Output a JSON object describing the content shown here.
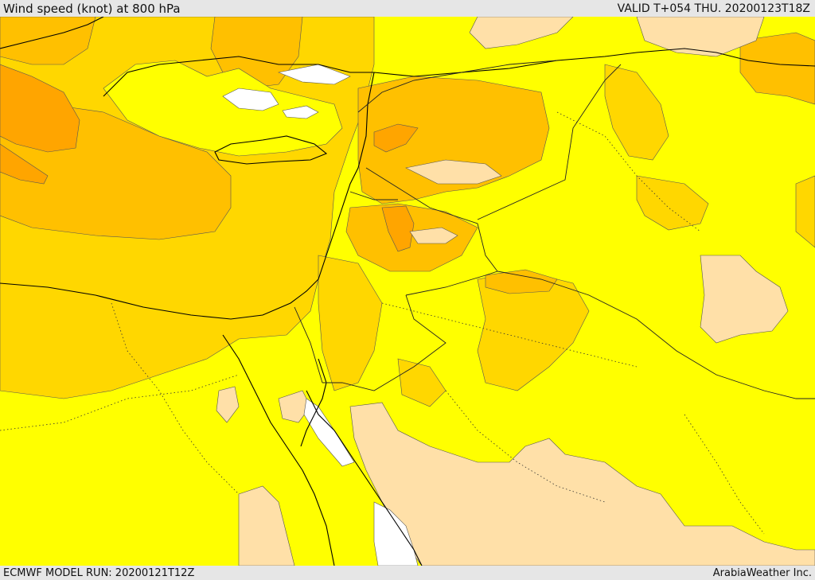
{
  "header": {
    "title": "Wind speed (knot) at 800 hPa",
    "valid": "VALID T+054 THU. 20200123T18Z"
  },
  "footer": {
    "model_run": "ECMWF MODEL RUN: 20200121T12Z",
    "credit": "ArabiaWeather Inc."
  },
  "map": {
    "variable": "wind speed",
    "unit": "knot",
    "level": "800 hPa",
    "colors": {
      "calm": "#ffffff",
      "light": "#ffe0a8",
      "moderate": "#ffff00",
      "fresh": "#ffd700",
      "strong": "#ffc000",
      "stronger": "#ffa500",
      "strongest": "#ff8c00",
      "coastline": "#000000",
      "border": "#222222",
      "contour": "#555555"
    }
  }
}
